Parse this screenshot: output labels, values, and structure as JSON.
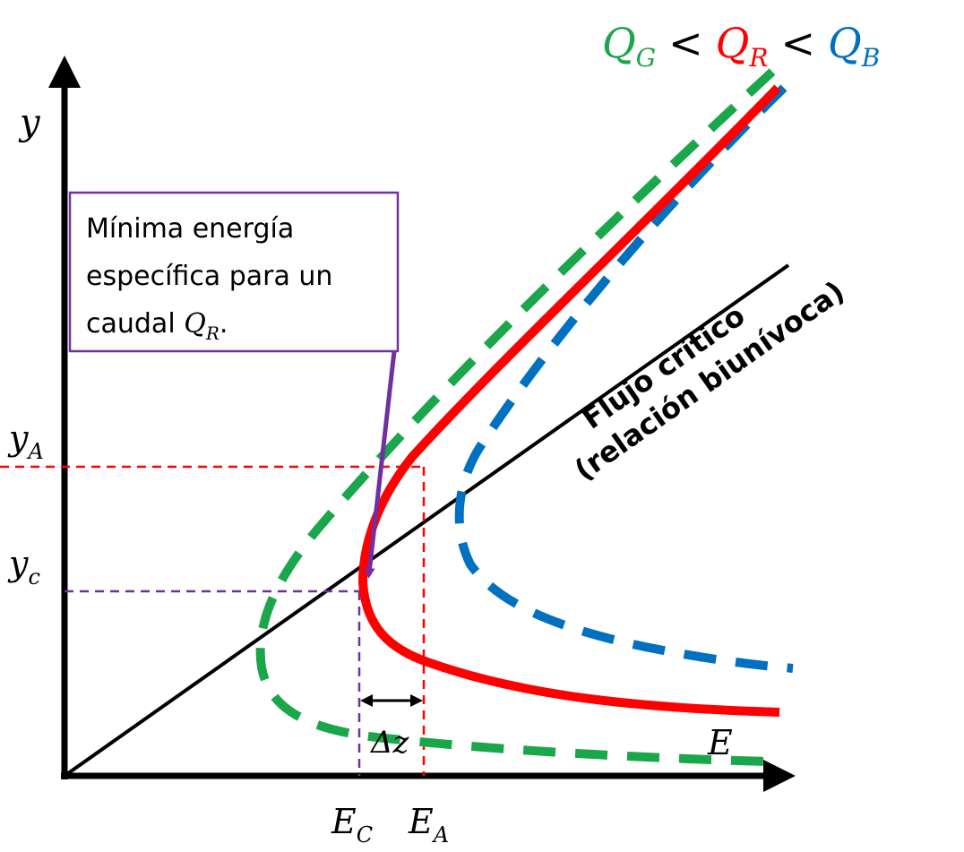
{
  "colors": {
    "axis": "#000000",
    "green": "#1aa64a",
    "red": "#ff0000",
    "blue": "#0070c0",
    "purple": "#7030a0"
  },
  "legend": {
    "qg": {
      "main": "Q",
      "sub": "G"
    },
    "lt1": "<",
    "qr": {
      "main": "Q",
      "sub": "R"
    },
    "lt2": "<",
    "qb": {
      "main": "Q",
      "sub": "B"
    }
  },
  "axes": {
    "y_label": "y",
    "x_label": "E"
  },
  "y_ticks": {
    "ya": {
      "main": "y",
      "sub": "A"
    },
    "yc": {
      "main": "y",
      "sub": "c"
    }
  },
  "x_ticks": {
    "ec": {
      "main": "E",
      "sub": "C"
    },
    "ea": {
      "main": "E",
      "sub": "A"
    }
  },
  "callout": {
    "line1": "Mínima energía",
    "line2": "específica para un",
    "line3_prefix": "caudal ",
    "line3_q": "Q",
    "line3_sub": "R",
    "line3_suffix": "."
  },
  "critical_label": {
    "line1": "Flujo crítico",
    "line2": "(relación biunívoca)"
  },
  "delta_z": "Δz"
}
